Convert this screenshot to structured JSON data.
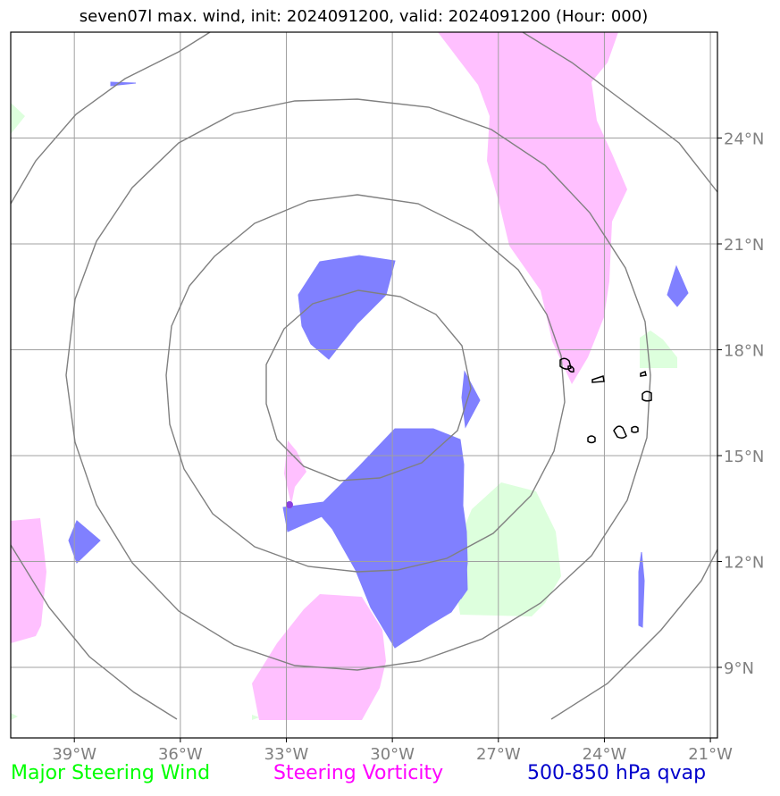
{
  "title": "seven07l max. wind, init: 2024091200, valid: 2024091200 (Hour: 000)",
  "map": {
    "lon_ticks": [
      "39°W",
      "36°W",
      "33°W",
      "30°W",
      "27°W",
      "24°W",
      "21°W"
    ],
    "lat_ticks": [
      "24°N",
      "21°N",
      "18°N",
      "15°N",
      "12°N",
      "9°N"
    ],
    "lon_range": [
      -40.8,
      -20.8
    ],
    "lat_range": [
      7.0,
      27.0
    ]
  },
  "legend": {
    "wind": "Major Steering Wind",
    "vorticity": "Steering Vorticity",
    "qvap": "500-850 hPa qvap"
  },
  "colors": {
    "wind": "#00ff00",
    "wind_fill": "#ddffdd",
    "vorticity": "#ff00ff",
    "vorticity_fill": "#ffc0ff",
    "qvap": "#0000cc",
    "qvap_fill": "#8080ff",
    "grid": "#a0a0a0",
    "ring": "#808080"
  }
}
